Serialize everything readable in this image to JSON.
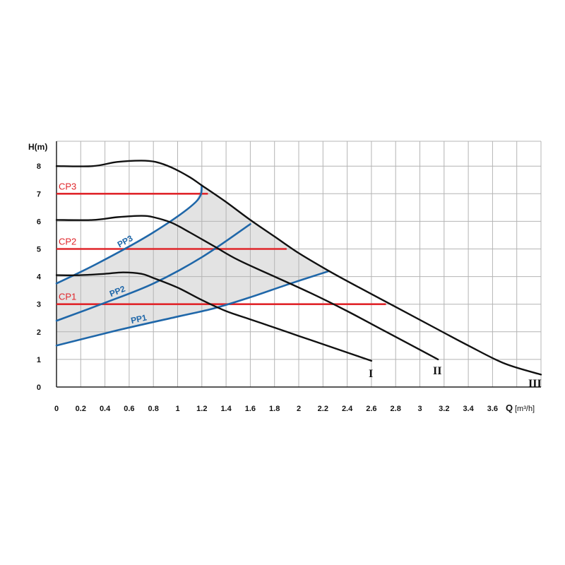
{
  "chart_data": {
    "type": "line",
    "title": "",
    "ylabel": "H(m)",
    "xlabel": "Q",
    "xunit": "[m³/h]",
    "xlim": [
      0,
      4.0
    ],
    "ylim": [
      0,
      8.9
    ],
    "grid": true,
    "x_ticks": [
      "0",
      "0.2",
      "0.4",
      "0.6",
      "0.8",
      "1",
      "1.2",
      "1.4",
      "1.6",
      "1.8",
      "2",
      "2.2",
      "2.4",
      "2.6",
      "2.8",
      "3",
      "3.2",
      "3.4",
      "3.6"
    ],
    "y_ticks": [
      "0",
      "1",
      "2",
      "3",
      "4",
      "5",
      "6",
      "7",
      "8"
    ],
    "colors": {
      "speed": "#111111",
      "constant_pressure": "#e0262b",
      "proportional_pressure": "#1f67a9",
      "area": "#e3e3e3",
      "grid": "#b4b4b4"
    },
    "speed_curves": [
      {
        "label": "I",
        "points": [
          [
            0,
            4.05
          ],
          [
            0.2,
            4.05
          ],
          [
            0.4,
            4.1
          ],
          [
            0.55,
            4.15
          ],
          [
            0.7,
            4.1
          ],
          [
            0.8,
            3.95
          ],
          [
            1.0,
            3.6
          ],
          [
            1.2,
            3.15
          ],
          [
            1.4,
            2.75
          ],
          [
            1.6,
            2.45
          ],
          [
            1.8,
            2.15
          ],
          [
            2.0,
            1.85
          ],
          [
            2.2,
            1.55
          ],
          [
            2.4,
            1.25
          ],
          [
            2.6,
            0.95
          ]
        ]
      },
      {
        "label": "II",
        "points": [
          [
            0,
            6.05
          ],
          [
            0.3,
            6.05
          ],
          [
            0.5,
            6.15
          ],
          [
            0.7,
            6.2
          ],
          [
            0.8,
            6.15
          ],
          [
            0.95,
            5.95
          ],
          [
            1.1,
            5.6
          ],
          [
            1.3,
            5.1
          ],
          [
            1.5,
            4.6
          ],
          [
            1.8,
            4.0
          ],
          [
            2.1,
            3.4
          ],
          [
            2.4,
            2.75
          ],
          [
            2.7,
            2.05
          ],
          [
            3.0,
            1.35
          ],
          [
            3.15,
            1.0
          ]
        ]
      },
      {
        "label": "III",
        "points": [
          [
            0,
            8.0
          ],
          [
            0.3,
            8.0
          ],
          [
            0.5,
            8.15
          ],
          [
            0.7,
            8.2
          ],
          [
            0.82,
            8.15
          ],
          [
            0.95,
            7.95
          ],
          [
            1.1,
            7.6
          ],
          [
            1.2,
            7.3
          ],
          [
            1.4,
            6.7
          ],
          [
            1.6,
            6.05
          ],
          [
            1.8,
            5.45
          ],
          [
            2.0,
            4.85
          ],
          [
            2.25,
            4.2
          ],
          [
            2.5,
            3.6
          ],
          [
            2.8,
            2.9
          ],
          [
            3.1,
            2.2
          ],
          [
            3.4,
            1.5
          ],
          [
            3.7,
            0.85
          ],
          [
            4.0,
            0.45
          ]
        ]
      }
    ],
    "constant_pressure": [
      {
        "label": "CP1",
        "y": 3,
        "x_end": 2.72
      },
      {
        "label": "CP2",
        "y": 5,
        "x_end": 1.9
      },
      {
        "label": "CP3",
        "y": 7,
        "x_end": 1.25
      }
    ],
    "proportional_pressure": [
      {
        "label": "PP1",
        "points": [
          [
            0,
            1.5
          ],
          [
            0.5,
            2.05
          ],
          [
            1.0,
            2.55
          ],
          [
            1.3,
            2.85
          ],
          [
            1.6,
            3.25
          ],
          [
            1.9,
            3.7
          ],
          [
            2.25,
            4.2
          ]
        ]
      },
      {
        "label": "PP2",
        "points": [
          [
            0,
            2.4
          ],
          [
            0.4,
            3.05
          ],
          [
            0.8,
            3.75
          ],
          [
            1.2,
            4.7
          ],
          [
            1.6,
            5.9
          ]
        ]
      },
      {
        "label": "PP3",
        "points": [
          [
            0,
            3.75
          ],
          [
            0.35,
            4.5
          ],
          [
            0.8,
            5.6
          ],
          [
            1.15,
            6.7
          ],
          [
            1.2,
            7.3
          ]
        ]
      }
    ]
  }
}
